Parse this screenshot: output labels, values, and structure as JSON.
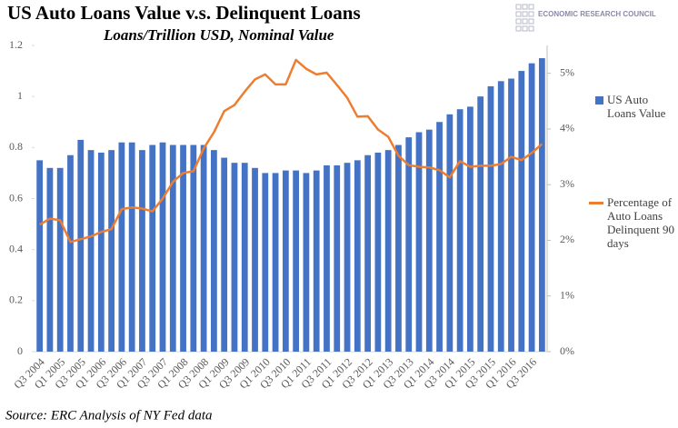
{
  "chart_data": {
    "type": "bar-line",
    "title": "US Auto Loans Value v.s. Delinquent Loans",
    "subtitle": "Loans/Trillion USD, Nominal Value",
    "source": "Source: ERC Analysis of NY Fed data",
    "logo": "ECONOMIC RESEARCH COUNCIL",
    "categories": [
      "Q3 2004",
      null,
      "Q1 2005",
      null,
      "Q3 2005",
      null,
      "Q1 2006",
      null,
      "Q3 2006",
      null,
      "Q1 2007",
      null,
      "Q3 2007",
      null,
      "Q1 2008",
      null,
      "Q3 2008",
      null,
      "Q1 2009",
      null,
      "Q3 2009",
      null,
      "Q1 2010",
      null,
      "Q3 2010",
      null,
      "Q1 2011",
      null,
      "Q3 2011",
      null,
      "Q1 2012",
      null,
      "Q3 2012",
      null,
      "Q1 2013",
      null,
      "Q3 2013",
      null,
      "Q1 2014",
      null,
      "Q3 2014",
      null,
      "Q1 2015",
      null,
      "Q3 2015",
      null,
      "Q1 2016",
      null,
      "Q3 2016",
      null
    ],
    "series": [
      {
        "name": "US Auto Loans Value",
        "type": "bar",
        "color": "#4472c4",
        "values": [
          0.75,
          0.72,
          0.72,
          0.77,
          0.83,
          0.79,
          0.78,
          0.79,
          0.82,
          0.82,
          0.79,
          0.81,
          0.82,
          0.81,
          0.81,
          0.81,
          0.81,
          0.79,
          0.76,
          0.74,
          0.74,
          0.72,
          0.7,
          0.7,
          0.71,
          0.71,
          0.7,
          0.71,
          0.73,
          0.73,
          0.74,
          0.75,
          0.77,
          0.78,
          0.79,
          0.81,
          0.84,
          0.86,
          0.87,
          0.9,
          0.93,
          0.95,
          0.96,
          1.0,
          1.04,
          1.06,
          1.07,
          1.1,
          1.13,
          1.15
        ]
      },
      {
        "name": "Percentage of Auto Loans Delinquent 90 days",
        "type": "line",
        "axis": "y2",
        "color": "#ed7d31",
        "values": [
          2.28,
          2.39,
          2.36,
          1.97,
          2.02,
          2.07,
          2.15,
          2.2,
          2.56,
          2.59,
          2.57,
          2.52,
          2.75,
          3.05,
          3.21,
          3.24,
          3.65,
          3.94,
          4.32,
          4.43,
          4.67,
          4.89,
          4.98,
          4.8,
          4.8,
          5.24,
          5.08,
          4.98,
          5.01,
          4.79,
          4.56,
          4.22,
          4.23,
          3.99,
          3.86,
          3.52,
          3.35,
          3.32,
          3.31,
          3.26,
          3.13,
          3.42,
          3.32,
          3.34,
          3.34,
          3.37,
          3.5,
          3.44,
          3.57,
          3.73
        ]
      }
    ],
    "ylim": [
      0,
      1.2
    ],
    "yticks": [
      0,
      0.2,
      0.4,
      0.6,
      0.8,
      1,
      1.2
    ],
    "y2lim": [
      0,
      5.5
    ],
    "y2ticks": [
      {
        "value": 0,
        "label": "0%"
      },
      {
        "value": 1,
        "label": "1%"
      },
      {
        "value": 2,
        "label": "2%"
      },
      {
        "value": 3,
        "label": "3%"
      },
      {
        "value": 4,
        "label": "4%"
      },
      {
        "value": 5,
        "label": "5%"
      }
    ],
    "grid": false,
    "legend": "right"
  }
}
